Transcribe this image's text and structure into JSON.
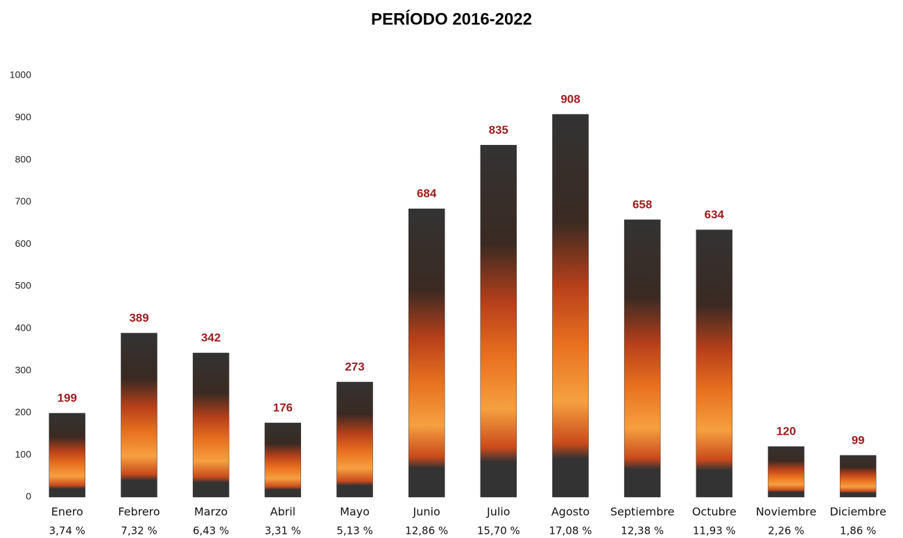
{
  "chart_data": {
    "type": "bar",
    "title": "PERÍODO 2016-2022",
    "categories": [
      "Enero",
      "Febrero",
      "Marzo",
      "Abril",
      "Mayo",
      "Junio",
      "Julio",
      "Agosto",
      "Septiembre",
      "Octubre",
      "Noviembre",
      "Diciembre"
    ],
    "values": [
      199,
      389,
      342,
      176,
      273,
      684,
      835,
      908,
      658,
      634,
      120,
      99
    ],
    "category_shares": [
      {
        "value": 3.74,
        "label": "3,74 %"
      },
      {
        "value": 7.32,
        "label": "7,32 %"
      },
      {
        "value": 6.43,
        "label": "6,43 %"
      },
      {
        "value": 3.31,
        "label": "3,31 %"
      },
      {
        "value": 5.13,
        "label": "5,13 %"
      },
      {
        "value": 12.86,
        "label": "12,86 %"
      },
      {
        "value": 15.7,
        "label": "15,70 %"
      },
      {
        "value": 17.08,
        "label": "17,08 %"
      },
      {
        "value": 12.38,
        "label": "12,38 %"
      },
      {
        "value": 11.93,
        "label": "11,93 %"
      },
      {
        "value": 2.26,
        "label": "2,26 %"
      },
      {
        "value": 1.86,
        "label": "1,86 %"
      }
    ],
    "color": "#333333",
    "value_label_color": "#9b1c1c",
    "ylim": [
      0,
      1000
    ],
    "yticks": [
      0,
      100,
      200,
      300,
      400,
      500,
      600,
      700,
      800,
      900,
      1000
    ],
    "grid": false
  }
}
